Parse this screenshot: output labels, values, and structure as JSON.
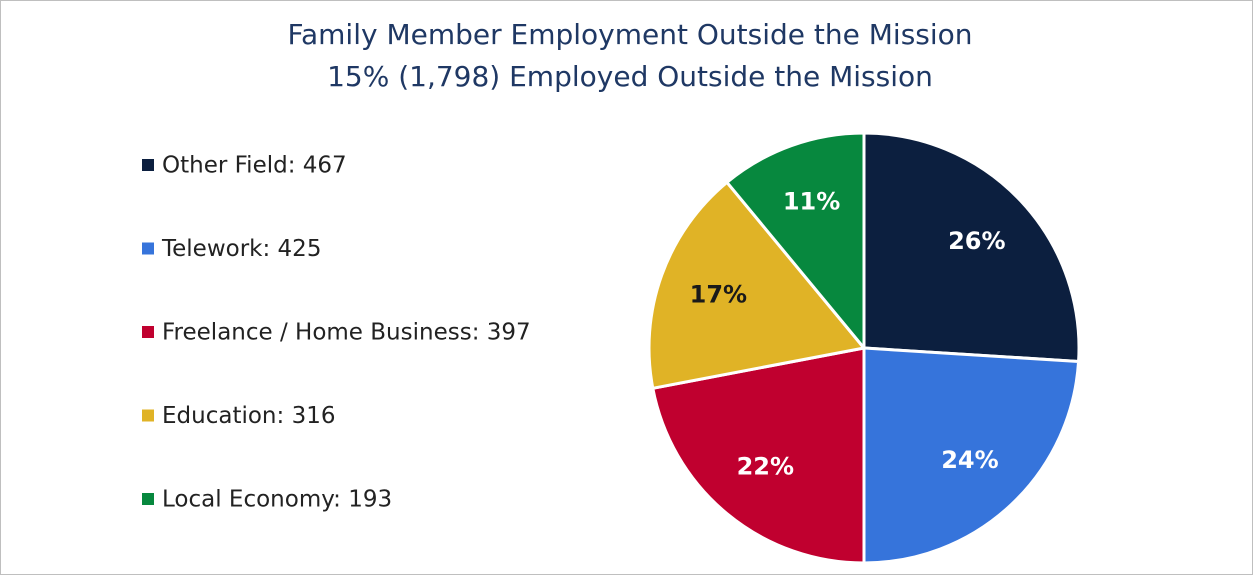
{
  "chart_data": {
    "type": "pie",
    "title": "Family Member Employment Outside the Mission",
    "subtitle": "15% (1,798) Employed Outside the Mission",
    "categories": [
      "Other Field: 467",
      "Telework: 425",
      "Freelance / Home Business: 397",
      "Education: 316",
      "Local Economy: 193"
    ],
    "values": [
      26,
      24,
      22,
      17,
      11
    ],
    "value_labels": [
      "26%",
      "24%",
      "22%",
      "17%",
      "11%"
    ],
    "colors": [
      "#0c1f3f",
      "#3674db",
      "#c0002f",
      "#e0b326",
      "#07883e"
    ],
    "label_colors": [
      "#ffffff",
      "#ffffff",
      "#ffffff",
      "#1a1a1a",
      "#ffffff"
    ],
    "legend": "left"
  }
}
